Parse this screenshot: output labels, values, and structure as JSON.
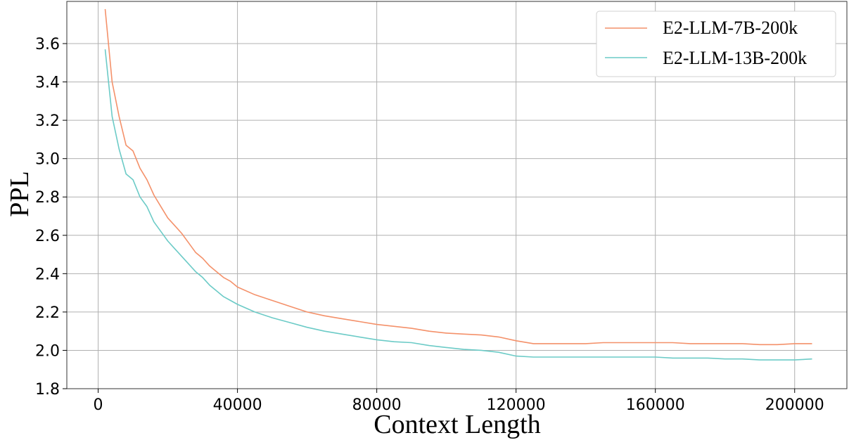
{
  "chart_data": {
    "type": "line",
    "xlabel": "Context Length",
    "ylabel": "PPL",
    "xlim": [
      -9000,
      215000
    ],
    "ylim": [
      1.8,
      3.82
    ],
    "xticks": [
      0,
      40000,
      80000,
      120000,
      160000,
      200000
    ],
    "xtick_labels": [
      "0",
      "40000",
      "80000",
      "120000",
      "160000",
      "200000"
    ],
    "yticks": [
      1.8,
      2.0,
      2.2,
      2.4,
      2.6,
      2.8,
      3.0,
      3.2,
      3.4,
      3.6
    ],
    "ytick_labels": [
      "1.8",
      "2.0",
      "2.2",
      "2.4",
      "2.6",
      "2.8",
      "3.0",
      "3.2",
      "3.4",
      "3.6"
    ],
    "grid": true,
    "legend_position": "top-right",
    "series": [
      {
        "name": "E2-LLM-7B-200k",
        "color": "#f4916a",
        "x": [
          2000,
          4000,
          6000,
          8000,
          10000,
          12000,
          14000,
          16000,
          18000,
          20000,
          22000,
          24000,
          26000,
          28000,
          30000,
          32000,
          34000,
          36000,
          38000,
          40000,
          45000,
          50000,
          55000,
          60000,
          65000,
          70000,
          75000,
          80000,
          85000,
          90000,
          95000,
          100000,
          105000,
          110000,
          115000,
          120000,
          125000,
          130000,
          135000,
          140000,
          145000,
          150000,
          155000,
          160000,
          165000,
          170000,
          175000,
          180000,
          185000,
          190000,
          195000,
          200000,
          205000
        ],
        "y": [
          3.78,
          3.4,
          3.22,
          3.07,
          3.04,
          2.95,
          2.89,
          2.81,
          2.75,
          2.69,
          2.65,
          2.61,
          2.56,
          2.51,
          2.48,
          2.44,
          2.41,
          2.38,
          2.36,
          2.33,
          2.29,
          2.26,
          2.23,
          2.2,
          2.18,
          2.165,
          2.15,
          2.135,
          2.125,
          2.115,
          2.1,
          2.09,
          2.085,
          2.08,
          2.07,
          2.05,
          2.035,
          2.035,
          2.035,
          2.035,
          2.04,
          2.04,
          2.04,
          2.04,
          2.04,
          2.035,
          2.035,
          2.035,
          2.035,
          2.03,
          2.03,
          2.035,
          2.035
        ]
      },
      {
        "name": "E2-LLM-13B-200k",
        "color": "#6ccbc7",
        "x": [
          2000,
          4000,
          6000,
          8000,
          10000,
          12000,
          14000,
          16000,
          18000,
          20000,
          22000,
          24000,
          26000,
          28000,
          30000,
          32000,
          34000,
          36000,
          38000,
          40000,
          45000,
          50000,
          55000,
          60000,
          65000,
          70000,
          75000,
          80000,
          85000,
          90000,
          95000,
          100000,
          105000,
          110000,
          115000,
          120000,
          125000,
          130000,
          135000,
          140000,
          145000,
          150000,
          155000,
          160000,
          165000,
          170000,
          175000,
          180000,
          185000,
          190000,
          195000,
          200000,
          205000
        ],
        "y": [
          3.57,
          3.22,
          3.05,
          2.92,
          2.89,
          2.8,
          2.75,
          2.67,
          2.62,
          2.57,
          2.53,
          2.49,
          2.45,
          2.41,
          2.38,
          2.34,
          2.31,
          2.28,
          2.26,
          2.24,
          2.2,
          2.17,
          2.145,
          2.12,
          2.1,
          2.085,
          2.07,
          2.055,
          2.045,
          2.04,
          2.025,
          2.015,
          2.005,
          2.0,
          1.99,
          1.97,
          1.965,
          1.965,
          1.965,
          1.965,
          1.965,
          1.965,
          1.965,
          1.965,
          1.96,
          1.96,
          1.96,
          1.955,
          1.955,
          1.95,
          1.95,
          1.95,
          1.955
        ]
      }
    ]
  }
}
